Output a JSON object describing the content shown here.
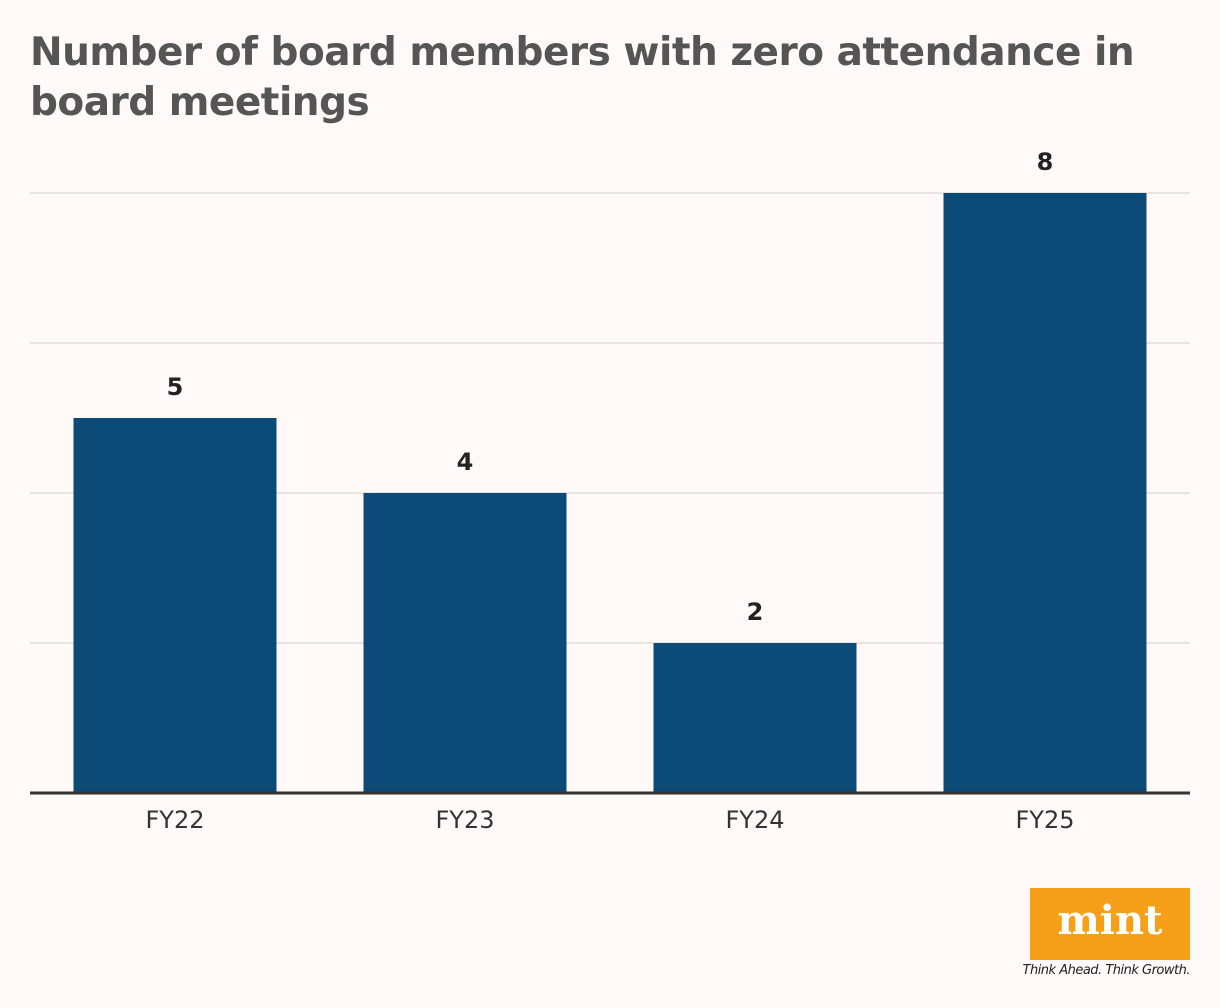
{
  "chart_data": {
    "type": "bar",
    "title": "Number of board members with zero attendance in board meetings",
    "categories": [
      "FY22",
      "FY23",
      "FY24",
      "FY25"
    ],
    "values": [
      5,
      4,
      2,
      8
    ],
    "color": "#0c4a78",
    "ylim": [
      0,
      8
    ],
    "yticks": [
      0,
      2,
      4,
      6,
      8
    ],
    "grid": true
  },
  "brand": {
    "logo": "mint",
    "tagline": "Think Ahead. Think Growth."
  }
}
